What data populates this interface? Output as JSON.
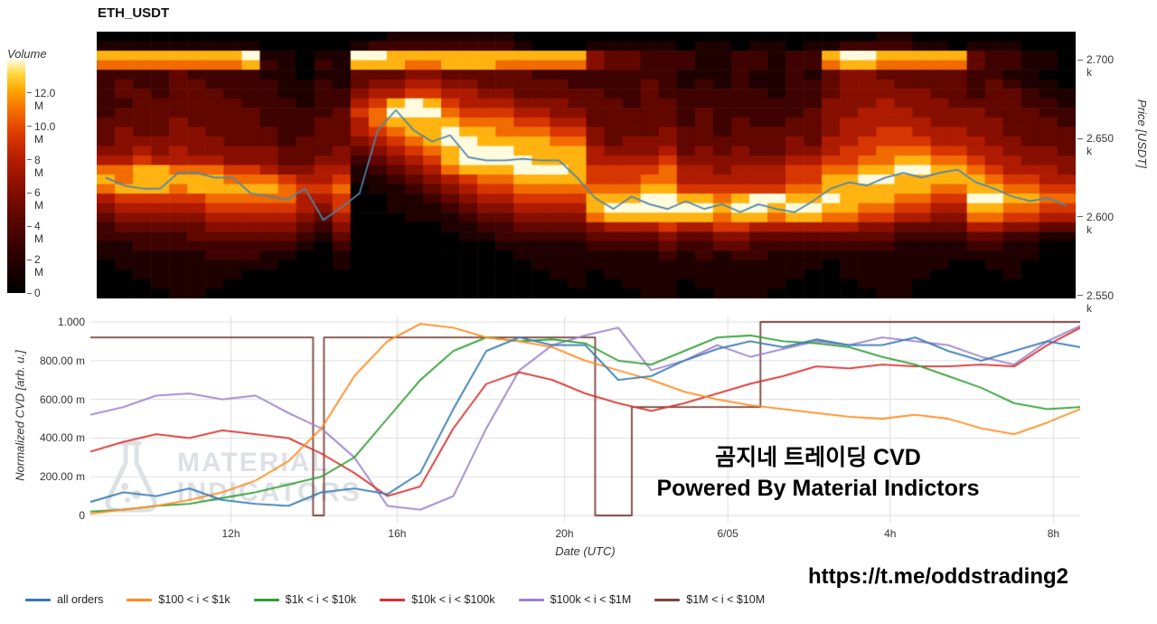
{
  "chart_data": [
    {
      "type": "heatmap",
      "title": "ETH_USDT",
      "colorbar": {
        "label": "Volume",
        "ticks": [
          "12.0 M",
          "10.0 M",
          "8 M",
          "6 M",
          "4 M",
          "2 M",
          "0"
        ],
        "values": [
          12,
          10,
          8,
          6,
          4,
          2,
          0
        ],
        "max": 14
      },
      "yaxis": {
        "label": "Price [USDT]",
        "ticks": [
          "2.700 k",
          "2.650 k",
          "2.600 k",
          "2.550 k"
        ],
        "values": [
          2.7,
          2.65,
          2.6,
          2.55
        ],
        "max": 2.718,
        "min": 2.548
      },
      "colormap": [
        [
          0,
          "#000000"
        ],
        [
          0.16,
          "#2b0100"
        ],
        [
          0.32,
          "#5c0600"
        ],
        [
          0.46,
          "#8c1000"
        ],
        [
          0.58,
          "#b71e00"
        ],
        [
          0.68,
          "#dc3a00"
        ],
        [
          0.78,
          "#f36c00"
        ],
        [
          0.87,
          "#ffa600"
        ],
        [
          0.94,
          "#ffd83c"
        ],
        [
          1,
          "#fffbdc"
        ]
      ],
      "grid": {
        "cols": 54,
        "intensity_scale": "0=no volume, 9=max volume (~14M)",
        "rows": [
          "000000000000000011111110000000000000000000011000000000",
          "111111111000001222222221000111110110110112222110111000",
          "888888889110119988888888888433222112212289988888322110",
          "777777778210218887788877777433222112212278877777322110",
          "222232222110113334433333222222221112112134433333221100",
          "232233222211213445544333332222321212112234443333232110",
          "233233322211224556655443333322322222212234444433233211",
          "223333332221225689865554443332332222222244454443333221",
          "233333333222236799976665544333332322222344555444433322",
          "333343333222335788887776655333332323223345555544443332",
          "343344333322335678898877766433343323333345566555443333",
          "344444433323334567899888877434443333334355666655544333",
          "445454444433343456789998888544453434334456677766554443",
          "556555544433442345689999888555564444445566778877655444",
          "778877766544551234578889998666675545556677889988765554",
          "878888877765561123456778888666775555556688998888876655",
          "788878888876670112345667777777886666667788888877887766",
          "566666777775560011234556666888998878998898887766998877",
          "455555666665460011123445555899999989989988776655887766",
          "344444555554350001112334444788888878878877665544776655",
          "233333444443240000011223333455565566555555443333554433",
          "222223333332130000001122222333343344333333332222332211",
          "112222222221020000000011111222232233222222221111221100",
          "111111222110010000000001111111121212211111111111111100",
          "011111111100010000000000111111111111111101111110011000",
          "001111110000000000000000011011111111111001111100001000",
          "000111100000000000000000001001110111110000111000000000",
          "000011000000000000000000000000110011100000011000000000"
        ]
      },
      "price_line": {
        "name": "price",
        "color": "#4a86ad",
        "values": [
          2.625,
          2.62,
          2.618,
          2.618,
          2.628,
          2.628,
          2.625,
          2.625,
          2.615,
          2.613,
          2.611,
          2.618,
          2.598,
          2.606,
          2.615,
          2.655,
          2.668,
          2.655,
          2.648,
          2.652,
          2.638,
          2.636,
          2.636,
          2.637,
          2.636,
          2.636,
          2.625,
          2.612,
          2.605,
          2.613,
          2.608,
          2.605,
          2.61,
          2.605,
          2.608,
          2.603,
          2.608,
          2.605,
          2.603,
          2.61,
          2.618,
          2.622,
          2.62,
          2.625,
          2.628,
          2.625,
          2.628,
          2.63,
          2.622,
          2.618,
          2.613,
          2.61,
          2.612,
          2.607
        ]
      }
    },
    {
      "type": "line",
      "ylabel": "Normalized CVD [arb. u.]",
      "xlabel": "Date (UTC)",
      "ylim": [
        0,
        1
      ],
      "yticks": [
        {
          "label": "0",
          "value": 0
        },
        {
          "label": "200.00 m",
          "value": 0.2
        },
        {
          "label": "400.00 m",
          "value": 0.4
        },
        {
          "label": "600.00 m",
          "value": 0.6
        },
        {
          "label": "800.00 m",
          "value": 0.8
        },
        {
          "label": "1.000",
          "value": 1.0
        }
      ],
      "xticks": [
        {
          "label": "12h",
          "pos": 0.142
        },
        {
          "label": "16h",
          "pos": 0.31
        },
        {
          "label": "20h",
          "pos": 0.479
        },
        {
          "label": "6/05",
          "pos": 0.644
        },
        {
          "label": "4h",
          "pos": 0.808
        },
        {
          "label": "8h",
          "pos": 0.973
        }
      ],
      "series": [
        {
          "name": "all orders",
          "color": "#3579b1",
          "values": [
            0.07,
            0.12,
            0.1,
            0.14,
            0.08,
            0.06,
            0.05,
            0.12,
            0.14,
            0.11,
            0.22,
            0.55,
            0.85,
            0.92,
            0.88,
            0.88,
            0.7,
            0.72,
            0.8,
            0.86,
            0.9,
            0.87,
            0.91,
            0.88,
            0.88,
            0.92,
            0.85,
            0.8,
            0.85,
            0.9,
            0.87
          ]
        },
        {
          "name": "$100 < i < $1k",
          "color": "#ff8c1e",
          "values": [
            0.01,
            0.03,
            0.05,
            0.08,
            0.12,
            0.18,
            0.28,
            0.45,
            0.72,
            0.9,
            0.99,
            0.97,
            0.92,
            0.9,
            0.87,
            0.8,
            0.75,
            0.7,
            0.64,
            0.6,
            0.57,
            0.55,
            0.53,
            0.51,
            0.5,
            0.52,
            0.5,
            0.45,
            0.42,
            0.48,
            0.55
          ]
        },
        {
          "name": "$1k < i < $10k",
          "color": "#2f9e33",
          "values": [
            0.02,
            0.03,
            0.05,
            0.06,
            0.09,
            0.12,
            0.16,
            0.2,
            0.3,
            0.5,
            0.7,
            0.85,
            0.92,
            0.9,
            0.91,
            0.89,
            0.8,
            0.78,
            0.85,
            0.92,
            0.93,
            0.9,
            0.89,
            0.87,
            0.82,
            0.78,
            0.72,
            0.66,
            0.58,
            0.55,
            0.56
          ]
        },
        {
          "name": "$10k < i < $100k",
          "color": "#d6302c",
          "values": [
            0.33,
            0.38,
            0.42,
            0.4,
            0.44,
            0.42,
            0.4,
            0.32,
            0.22,
            0.1,
            0.15,
            0.45,
            0.68,
            0.74,
            0.7,
            0.63,
            0.58,
            0.54,
            0.58,
            0.63,
            0.68,
            0.72,
            0.77,
            0.76,
            0.78,
            0.77,
            0.77,
            0.78,
            0.77,
            0.88,
            0.97
          ]
        },
        {
          "name": "$100k < i < $1M",
          "color": "#9b82cc",
          "values": [
            0.52,
            0.56,
            0.62,
            0.63,
            0.6,
            0.62,
            0.53,
            0.45,
            0.3,
            0.05,
            0.03,
            0.1,
            0.45,
            0.75,
            0.88,
            0.93,
            0.97,
            0.75,
            0.8,
            0.88,
            0.82,
            0.86,
            0.9,
            0.88,
            0.92,
            0.9,
            0.88,
            0.82,
            0.78,
            0.9,
            0.98
          ]
        },
        {
          "name": "$1M < i < $10M",
          "color": "#7a453c",
          "x": [
            0,
            0.225,
            0.225,
            0.236,
            0.236,
            0.51,
            0.51,
            0.547,
            0.547,
            0.677,
            0.677,
            1.0
          ],
          "values": [
            0.92,
            0.92,
            0,
            0,
            0.92,
            0.92,
            0,
            0,
            0.56,
            0.56,
            1.0,
            1.0
          ]
        }
      ]
    }
  ],
  "overlay": {
    "line1": "곰지네 트레이딩 CVD",
    "line2": "Powered By Material Indictors"
  },
  "watermark": {
    "line1": "MATERIAL",
    "line2": "INDICATORS"
  },
  "footer": {
    "link": "https://t.me/oddstrading2"
  }
}
